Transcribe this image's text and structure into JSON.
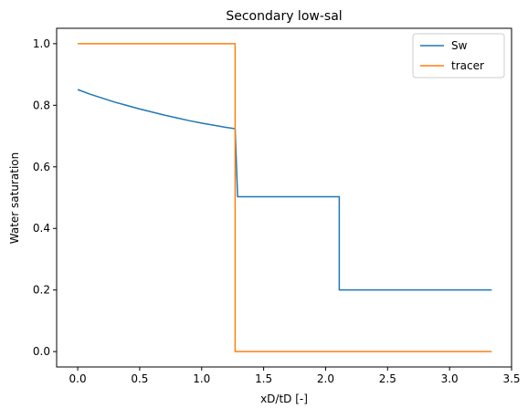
{
  "chart_data": {
    "type": "line",
    "title": "Secondary low-sal",
    "xlabel": "xD/tD [-]",
    "ylabel": "Water saturation",
    "xlim": [
      -0.17,
      3.5
    ],
    "ylim": [
      -0.05,
      1.05
    ],
    "xticks": [
      "0.0",
      "0.5",
      "1.0",
      "1.5",
      "2.0",
      "2.5",
      "3.0",
      "3.5"
    ],
    "yticks": [
      "0.0",
      "0.2",
      "0.4",
      "0.6",
      "0.8",
      "1.0"
    ],
    "grid": false,
    "legend_position": "top-right",
    "series": [
      {
        "name": "Sw",
        "color": "#1f77b4",
        "points": [
          [
            0.0,
            0.851
          ],
          [
            0.1,
            0.836
          ],
          [
            0.2,
            0.823
          ],
          [
            0.3,
            0.81
          ],
          [
            0.4,
            0.799
          ],
          [
            0.5,
            0.788
          ],
          [
            0.6,
            0.778
          ],
          [
            0.7,
            0.768
          ],
          [
            0.8,
            0.759
          ],
          [
            0.9,
            0.75
          ],
          [
            1.0,
            0.742
          ],
          [
            1.1,
            0.735
          ],
          [
            1.2,
            0.728
          ],
          [
            1.27,
            0.724
          ],
          [
            1.29,
            0.503
          ],
          [
            2.11,
            0.503
          ],
          [
            2.11,
            0.2
          ],
          [
            3.34,
            0.2
          ]
        ]
      },
      {
        "name": "tracer",
        "color": "#ff7f0e",
        "points": [
          [
            0.0,
            1.0
          ],
          [
            1.27,
            1.0
          ],
          [
            1.27,
            0.0
          ],
          [
            3.34,
            0.0
          ]
        ]
      }
    ]
  }
}
